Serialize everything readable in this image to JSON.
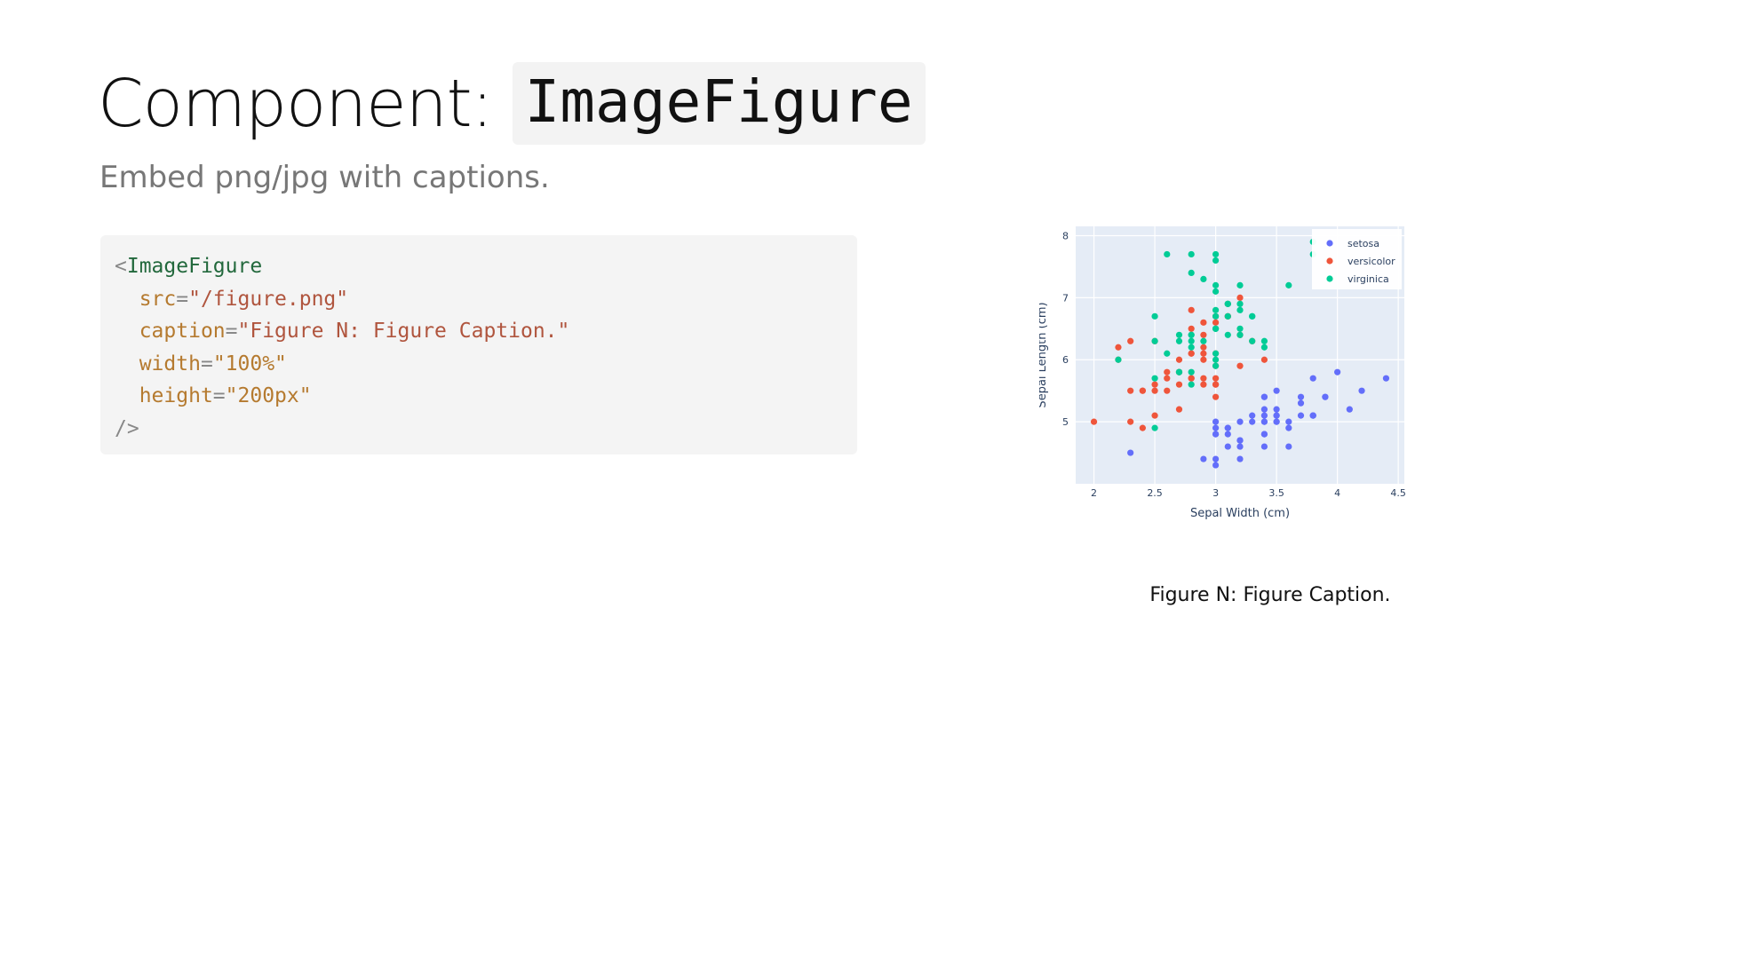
{
  "page": {
    "title_prefix": "Component:",
    "title_code": "ImageFigure",
    "subtitle": "Embed png/jpg with captions."
  },
  "code": {
    "line1_open": "<",
    "line1_tag": "ImageFigure",
    "line2_attr": "src",
    "line2_eq": "=",
    "line2_val": "\"/figure.png\"",
    "line3_attr": "caption",
    "line3_eq": "=",
    "line3_val": "\"Figure N: Figure Caption.\"",
    "line4_attr": "width",
    "line4_eq": "=",
    "line4_val": "\"100%\"",
    "line5_attr": "height",
    "line5_eq": "=",
    "line5_val": "\"200px\"",
    "line6_close": "/>"
  },
  "figure": {
    "caption": "Figure N: Figure Caption."
  },
  "chart_data": {
    "type": "scatter",
    "xlabel": "Sepal Width (cm)",
    "ylabel": "Sepal Length (cm)",
    "xlim": [
      1.85,
      4.55
    ],
    "ylim": [
      4.0,
      8.15
    ],
    "xticks": [
      2,
      2.5,
      3,
      3.5,
      4,
      4.5
    ],
    "xtick_labels": [
      "2",
      "2.5",
      "3",
      "3.5",
      "4",
      "4.5"
    ],
    "yticks": [
      5,
      6,
      7,
      8
    ],
    "ytick_labels": [
      "5",
      "6",
      "7",
      "8"
    ],
    "grid": true,
    "legend": "top-right",
    "series": [
      {
        "name": "setosa",
        "color": "#636efa",
        "points": [
          [
            3.5,
            5.1
          ],
          [
            3.0,
            4.9
          ],
          [
            3.2,
            4.7
          ],
          [
            3.1,
            4.6
          ],
          [
            3.6,
            5.0
          ],
          [
            3.9,
            5.4
          ],
          [
            3.4,
            4.6
          ],
          [
            3.4,
            5.0
          ],
          [
            2.9,
            4.4
          ],
          [
            3.1,
            4.9
          ],
          [
            3.7,
            5.4
          ],
          [
            3.4,
            4.8
          ],
          [
            3.0,
            4.8
          ],
          [
            3.0,
            4.3
          ],
          [
            4.0,
            5.8
          ],
          [
            4.4,
            5.7
          ],
          [
            3.9,
            5.4
          ],
          [
            3.5,
            5.1
          ],
          [
            3.8,
            5.7
          ],
          [
            3.8,
            5.1
          ],
          [
            3.4,
            5.4
          ],
          [
            3.7,
            5.1
          ],
          [
            3.6,
            4.6
          ],
          [
            3.3,
            5.1
          ],
          [
            3.4,
            4.8
          ],
          [
            3.0,
            5.0
          ],
          [
            3.4,
            5.0
          ],
          [
            3.5,
            5.2
          ],
          [
            3.4,
            5.2
          ],
          [
            3.2,
            4.7
          ],
          [
            3.1,
            4.8
          ],
          [
            3.4,
            5.4
          ],
          [
            4.1,
            5.2
          ],
          [
            4.2,
            5.5
          ],
          [
            3.1,
            4.9
          ],
          [
            3.2,
            5.0
          ],
          [
            3.5,
            5.5
          ],
          [
            3.6,
            4.9
          ],
          [
            3.0,
            4.4
          ],
          [
            3.4,
            5.1
          ],
          [
            3.5,
            5.0
          ],
          [
            2.3,
            4.5
          ],
          [
            3.2,
            4.4
          ],
          [
            3.5,
            5.0
          ],
          [
            3.8,
            5.1
          ],
          [
            3.0,
            4.8
          ],
          [
            3.8,
            5.1
          ],
          [
            3.2,
            4.6
          ],
          [
            3.7,
            5.3
          ],
          [
            3.3,
            5.0
          ]
        ]
      },
      {
        "name": "versicolor",
        "color": "#ef553b",
        "points": [
          [
            3.2,
            7.0
          ],
          [
            3.2,
            6.4
          ],
          [
            3.1,
            6.9
          ],
          [
            2.3,
            5.5
          ],
          [
            2.8,
            6.5
          ],
          [
            2.8,
            5.7
          ],
          [
            3.3,
            6.3
          ],
          [
            2.4,
            4.9
          ],
          [
            2.9,
            6.6
          ],
          [
            2.7,
            5.2
          ],
          [
            2.0,
            5.0
          ],
          [
            3.0,
            5.9
          ],
          [
            2.2,
            6.0
          ],
          [
            2.9,
            6.1
          ],
          [
            2.9,
            5.6
          ],
          [
            3.1,
            6.7
          ],
          [
            3.0,
            5.6
          ],
          [
            2.7,
            5.8
          ],
          [
            2.2,
            6.2
          ],
          [
            2.5,
            5.6
          ],
          [
            3.2,
            5.9
          ],
          [
            2.8,
            6.1
          ],
          [
            2.5,
            6.3
          ],
          [
            2.8,
            6.1
          ],
          [
            2.9,
            6.4
          ],
          [
            3.0,
            6.6
          ],
          [
            2.8,
            6.8
          ],
          [
            3.0,
            6.7
          ],
          [
            2.9,
            6.0
          ],
          [
            2.6,
            5.7
          ],
          [
            2.4,
            5.5
          ],
          [
            2.4,
            5.5
          ],
          [
            2.7,
            5.8
          ],
          [
            2.7,
            6.0
          ],
          [
            3.0,
            5.4
          ],
          [
            3.4,
            6.0
          ],
          [
            3.1,
            6.7
          ],
          [
            2.3,
            6.3
          ],
          [
            3.0,
            5.6
          ],
          [
            2.5,
            5.5
          ],
          [
            2.6,
            5.5
          ],
          [
            3.0,
            6.1
          ],
          [
            2.6,
            5.8
          ],
          [
            2.3,
            5.0
          ],
          [
            2.7,
            5.6
          ],
          [
            3.0,
            5.7
          ],
          [
            2.9,
            5.7
          ],
          [
            2.9,
            6.2
          ],
          [
            2.5,
            5.1
          ],
          [
            2.8,
            5.7
          ]
        ]
      },
      {
        "name": "virginica",
        "color": "#00cc96",
        "points": [
          [
            3.3,
            6.3
          ],
          [
            2.7,
            5.8
          ],
          [
            3.0,
            7.1
          ],
          [
            2.9,
            6.3
          ],
          [
            3.0,
            6.5
          ],
          [
            3.0,
            7.6
          ],
          [
            2.5,
            4.9
          ],
          [
            2.9,
            7.3
          ],
          [
            2.5,
            6.7
          ],
          [
            3.6,
            7.2
          ],
          [
            3.2,
            6.5
          ],
          [
            2.7,
            6.4
          ],
          [
            3.0,
            6.8
          ],
          [
            2.5,
            5.7
          ],
          [
            2.8,
            5.8
          ],
          [
            3.2,
            6.4
          ],
          [
            3.0,
            6.5
          ],
          [
            3.8,
            7.7
          ],
          [
            2.6,
            7.7
          ],
          [
            2.2,
            6.0
          ],
          [
            3.2,
            6.9
          ],
          [
            2.8,
            5.6
          ],
          [
            2.8,
            7.7
          ],
          [
            2.7,
            6.3
          ],
          [
            3.3,
            6.7
          ],
          [
            3.2,
            7.2
          ],
          [
            2.8,
            6.2
          ],
          [
            3.0,
            6.1
          ],
          [
            2.8,
            6.4
          ],
          [
            3.0,
            7.2
          ],
          [
            2.8,
            7.4
          ],
          [
            3.8,
            7.9
          ],
          [
            2.8,
            6.4
          ],
          [
            2.8,
            6.3
          ],
          [
            2.6,
            6.1
          ],
          [
            3.0,
            7.7
          ],
          [
            3.4,
            6.3
          ],
          [
            3.1,
            6.4
          ],
          [
            3.0,
            6.0
          ],
          [
            3.1,
            6.9
          ],
          [
            3.1,
            6.7
          ],
          [
            3.1,
            6.9
          ],
          [
            2.7,
            5.8
          ],
          [
            3.2,
            6.8
          ],
          [
            3.3,
            6.7
          ],
          [
            3.0,
            6.7
          ],
          [
            2.5,
            6.3
          ],
          [
            3.0,
            6.5
          ],
          [
            3.4,
            6.2
          ],
          [
            3.0,
            5.9
          ]
        ]
      }
    ]
  }
}
